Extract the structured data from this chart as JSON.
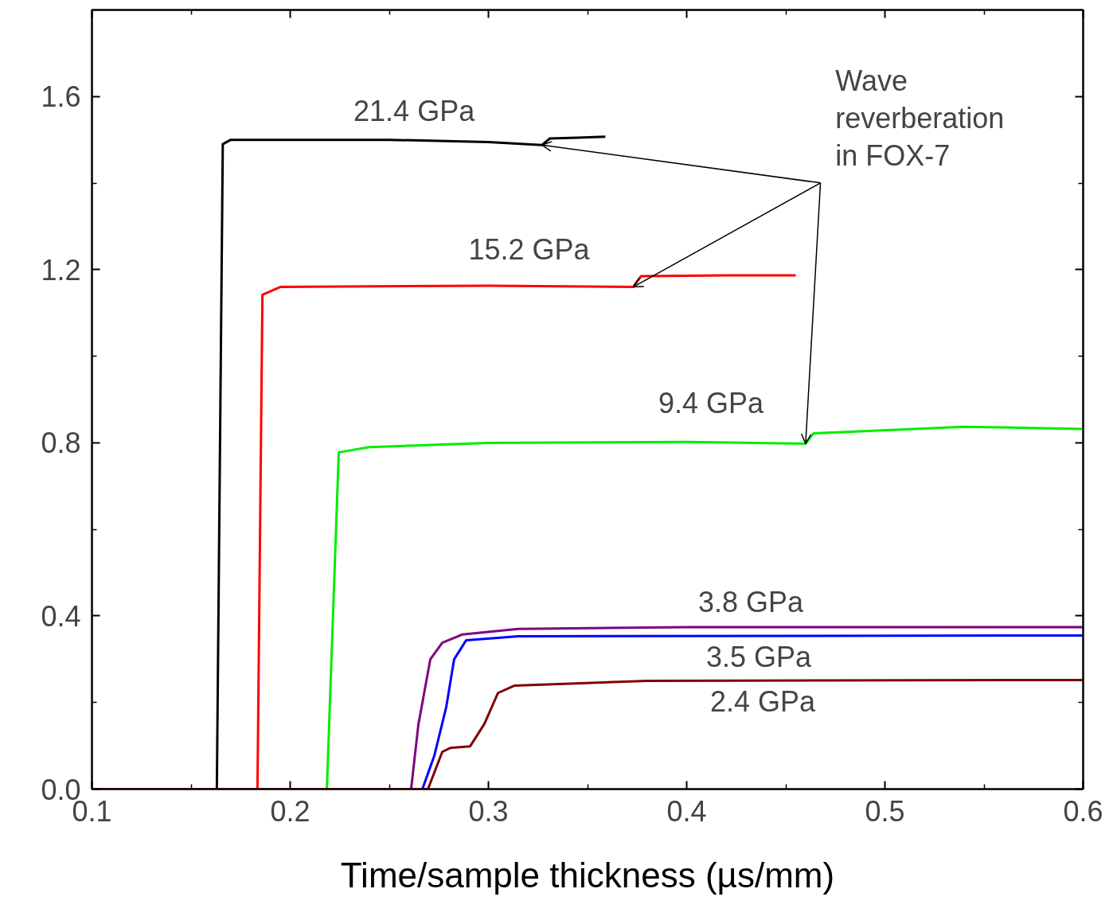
{
  "chart_data": {
    "type": "line",
    "xlabel": "Time/sample thickness (µs/mm)",
    "xlim": [
      0.1,
      0.6
    ],
    "ylim": [
      0,
      1.8
    ],
    "xticks": [
      0.1,
      0.2,
      0.3,
      0.4,
      0.5,
      0.6
    ],
    "yticks": [
      {
        "value": 0,
        "label": "0.0"
      },
      0.4,
      0.8,
      1.2,
      1.6
    ],
    "grid": false,
    "marker": "none",
    "line_style": "solid",
    "series": [
      {
        "name": "21.4 GPa",
        "color": "#000000",
        "x": [
          0.1,
          0.163,
          0.166,
          0.17,
          0.25,
          0.3,
          0.327,
          0.331,
          0.345,
          0.359
        ],
        "values": [
          0,
          0,
          1.49,
          1.5,
          1.5,
          1.495,
          1.488,
          1.503,
          1.505,
          1.507
        ]
      },
      {
        "name": "15.2 GPa",
        "color": "#ff0000",
        "x": [
          0.1,
          0.1835,
          0.186,
          0.195,
          0.3,
          0.373,
          0.377,
          0.42,
          0.455
        ],
        "values": [
          0,
          0,
          1.142,
          1.16,
          1.163,
          1.16,
          1.185,
          1.187,
          1.187
        ]
      },
      {
        "name": "9.4 GPa",
        "color": "#00ee00",
        "x": [
          0.1,
          0.2185,
          0.2245,
          0.24,
          0.3,
          0.4,
          0.46,
          0.464,
          0.54,
          0.6
        ],
        "values": [
          0,
          0,
          0.778,
          0.79,
          0.8,
          0.802,
          0.798,
          0.822,
          0.837,
          0.832
        ]
      },
      {
        "name": "3.8 GPa",
        "color": "#800080",
        "x": [
          0.1,
          0.261,
          0.2647,
          0.2707,
          0.2767,
          0.2867,
          0.315,
          0.4,
          0.6
        ],
        "values": [
          0,
          0,
          0.15,
          0.3,
          0.338,
          0.357,
          0.37,
          0.374,
          0.374
        ]
      },
      {
        "name": "3.5 GPa",
        "color": "#0000ff",
        "x": [
          0.1,
          0.2667,
          0.2727,
          0.2787,
          0.2827,
          0.2888,
          0.315,
          0.6
        ],
        "values": [
          0,
          0,
          0.077,
          0.189,
          0.3,
          0.344,
          0.353,
          0.355
        ]
      },
      {
        "name": "2.4 GPa",
        "color": "#800000",
        "x": [
          0.1,
          0.2695,
          0.2767,
          0.2807,
          0.2908,
          0.298,
          0.3048,
          0.313,
          0.38,
          0.6
        ],
        "values": [
          0,
          0,
          0.086,
          0.095,
          0.099,
          0.151,
          0.222,
          0.239,
          0.25,
          0.252
        ]
      }
    ],
    "annotations": [
      {
        "text": "Wave\nreverberation\nin FOX-7",
        "x": 0.327,
        "y": 1.488
      }
    ]
  }
}
